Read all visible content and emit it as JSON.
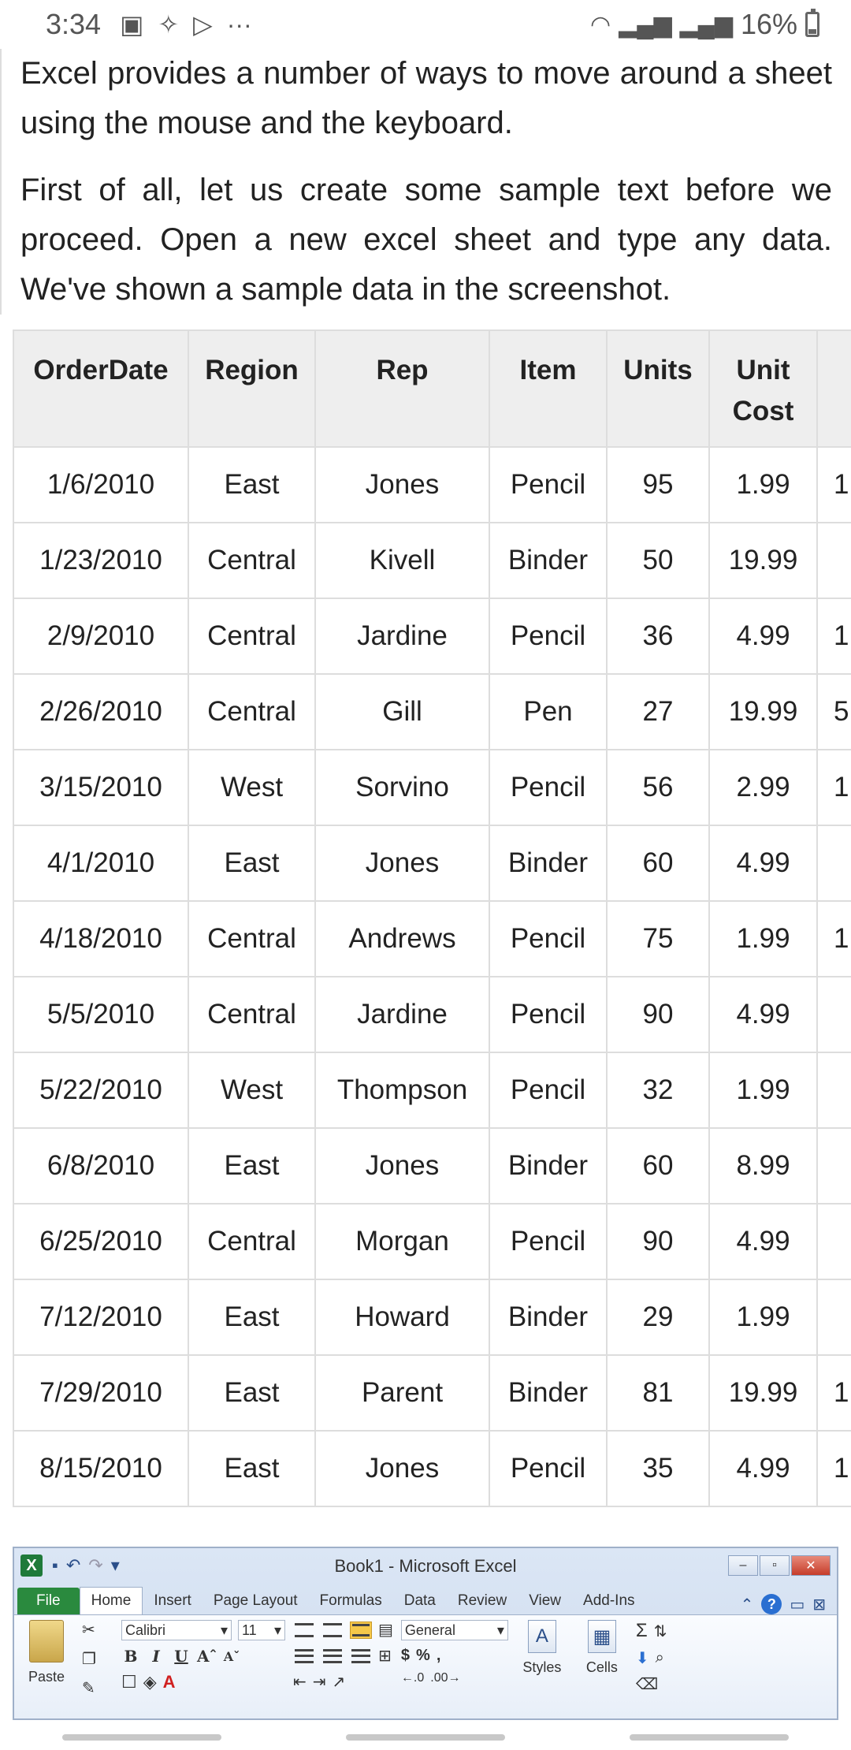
{
  "status_bar": {
    "time": "3:34",
    "battery": "16%"
  },
  "article": {
    "para1": "Excel provides a number of ways to move around a sheet using the mouse and the keyboard.",
    "para2": "First of all, let us create some sample text before we proceed. Open a new excel sheet and type any data. We've shown a sample data in the screenshot."
  },
  "table": {
    "headers": [
      "OrderDate",
      "Region",
      "Rep",
      "Item",
      "Units",
      "Unit Cost",
      ""
    ],
    "rows": [
      [
        "1/6/2010",
        "East",
        "Jones",
        "Pencil",
        "95",
        "1.99",
        "1"
      ],
      [
        "1/23/2010",
        "Central",
        "Kivell",
        "Binder",
        "50",
        "19.99",
        ""
      ],
      [
        "2/9/2010",
        "Central",
        "Jardine",
        "Pencil",
        "36",
        "4.99",
        "1"
      ],
      [
        "2/26/2010",
        "Central",
        "Gill",
        "Pen",
        "27",
        "19.99",
        "5"
      ],
      [
        "3/15/2010",
        "West",
        "Sorvino",
        "Pencil",
        "56",
        "2.99",
        "1"
      ],
      [
        "4/1/2010",
        "East",
        "Jones",
        "Binder",
        "60",
        "4.99",
        ""
      ],
      [
        "4/18/2010",
        "Central",
        "Andrews",
        "Pencil",
        "75",
        "1.99",
        "1"
      ],
      [
        "5/5/2010",
        "Central",
        "Jardine",
        "Pencil",
        "90",
        "4.99",
        ""
      ],
      [
        "5/22/2010",
        "West",
        "Thompson",
        "Pencil",
        "32",
        "1.99",
        ""
      ],
      [
        "6/8/2010",
        "East",
        "Jones",
        "Binder",
        "60",
        "8.99",
        ""
      ],
      [
        "6/25/2010",
        "Central",
        "Morgan",
        "Pencil",
        "90",
        "4.99",
        ""
      ],
      [
        "7/12/2010",
        "East",
        "Howard",
        "Binder",
        "29",
        "1.99",
        ""
      ],
      [
        "7/29/2010",
        "East",
        "Parent",
        "Binder",
        "81",
        "19.99",
        "1"
      ],
      [
        "8/15/2010",
        "East",
        "Jones",
        "Pencil",
        "35",
        "4.99",
        "1"
      ]
    ]
  },
  "excel": {
    "title": "Book1 - Microsoft Excel",
    "logo": "X",
    "tabs": [
      "File",
      "Home",
      "Insert",
      "Page Layout",
      "Formulas",
      "Data",
      "Review",
      "View",
      "Add-Ins"
    ],
    "font_name": "Calibri",
    "font_size": "11",
    "number_format": "General",
    "paste_label": "Paste",
    "styles_label": "Styles",
    "cells_label": "Cells",
    "help": "?"
  }
}
